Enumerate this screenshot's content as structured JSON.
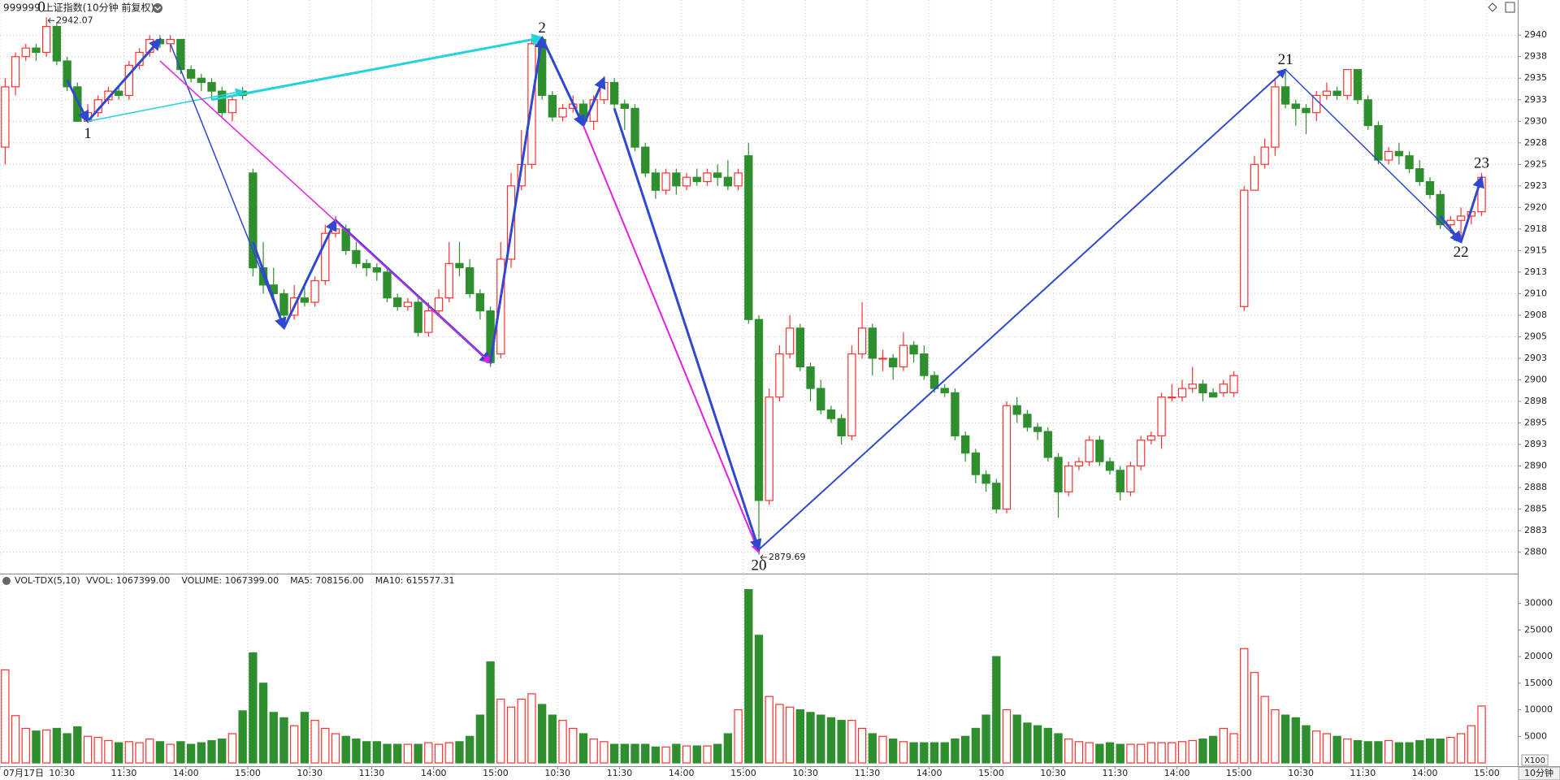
{
  "chart_data": [
    {
      "type": "candlestick",
      "title": "999999 上证指数(10分钟 前复权)",
      "up_color": "#ff3030",
      "down_color": "#2f8f2f",
      "xlim": [
        0,
        147
      ],
      "ylim": [
        2877.7,
        2942
      ],
      "grid": true,
      "yticks": [
        2880,
        {
          "value": 2882.5,
          "label": "2883"
        },
        2885,
        {
          "value": 2887.5,
          "label": "2888"
        },
        2890,
        {
          "value": 2892.5,
          "label": "2893"
        },
        2895,
        {
          "value": 2897.5,
          "label": "2898"
        },
        2900,
        {
          "value": 2902.5,
          "label": "2903"
        },
        2905,
        {
          "value": 2907.5,
          "label": "2908"
        },
        2910,
        {
          "value": 2912.5,
          "label": "2913"
        },
        2915,
        {
          "value": 2917.5,
          "label": "2918"
        },
        2920,
        {
          "value": 2922.5,
          "label": "2923"
        },
        2925,
        {
          "value": 2927.5,
          "label": "2928"
        },
        2930,
        {
          "value": 2932.5,
          "label": "2933"
        },
        2935,
        {
          "value": 2937.5,
          "label": "2938"
        },
        2940
      ],
      "open": [
        2927,
        2934,
        2937.5,
        2938.5,
        2938,
        2941,
        2937,
        2934,
        2930,
        2931,
        2932.5,
        2933.5,
        2933,
        2936.5,
        2938,
        2939.5,
        2939,
        2939.5,
        2936,
        2935,
        2934.5,
        2933.5,
        2931,
        2933.5,
        2924,
        2913,
        2911,
        2910,
        2907.5,
        2909.5,
        2909,
        2911.5,
        2917,
        2917.5,
        2915,
        2913.5,
        2913,
        2912.5,
        2909.5,
        2908.5,
        2909,
        2905.5,
        2908,
        2909.5,
        2913.5,
        2913,
        2910,
        2908,
        2903,
        2914,
        2922.5,
        2925,
        2939.5,
        2933,
        2930.5,
        2931.5,
        2932,
        2930,
        2932.5,
        2934.5,
        2932,
        2931.5,
        2927,
        2924,
        2922,
        2924,
        2922.5,
        2923.5,
        2923,
        2924,
        2923.5,
        2922.5,
        2926,
        2907,
        2886,
        2898,
        2903,
        2906,
        2901.5,
        2899,
        2896.5,
        2895.5,
        2893.5,
        2903,
        2906,
        2902.5,
        2902.5,
        2901.5,
        2904,
        2903,
        2900.5,
        2899,
        2898.5,
        2893.5,
        2891.5,
        2889,
        2888,
        2885,
        2897,
        2896,
        2894.5,
        2894,
        2891,
        2887,
        2890,
        2890.5,
        2893,
        2890.5,
        2889.5,
        2887,
        2890,
        2893,
        2893.5,
        2898,
        2898,
        2899,
        2899.5,
        2898.5,
        2898.5,
        2898.5,
        2908.5,
        2922,
        2925,
        2927,
        2934,
        2932,
        2931.5,
        2931,
        2933,
        2933.5,
        2933,
        2936,
        2932.5,
        2929.5,
        2925.5,
        2926.5,
        2926,
        2924.5,
        2923,
        2921.5,
        2918,
        2918.5,
        2919,
        2919.5
      ],
      "high": [
        2935,
        2938,
        2939,
        2939,
        2942.07,
        2941.5,
        2937.5,
        2934.5,
        2932,
        2933,
        2934,
        2934,
        2937,
        2938.5,
        2940,
        2940,
        2940,
        2939.5,
        2936.5,
        2935.5,
        2935,
        2934,
        2933,
        2934,
        2924.5,
        2916,
        2913,
        2910.5,
        2911,
        2911,
        2912,
        2918,
        2919,
        2918,
        2916,
        2914,
        2913.5,
        2913,
        2910,
        2909.5,
        2909.5,
        2909,
        2910.5,
        2916,
        2916,
        2914,
        2910.5,
        2908.5,
        2916,
        2924,
        2929,
        2939.5,
        2939.7,
        2933.5,
        2932,
        2933,
        2932.5,
        2933,
        2935.2,
        2935,
        2932.5,
        2932,
        2927.5,
        2924.5,
        2924.5,
        2924.5,
        2924,
        2924.5,
        2924.5,
        2925,
        2925.5,
        2924.5,
        2927.5,
        2907.5,
        2899,
        2904,
        2907.5,
        2906.5,
        2902,
        2900,
        2897,
        2896,
        2904,
        2909,
        2906.5,
        2903.5,
        2903,
        2905.5,
        2904.5,
        2904,
        2901,
        2899.5,
        2899,
        2894,
        2892,
        2889.5,
        2888.5,
        2897.5,
        2898,
        2896.5,
        2895,
        2894.5,
        2891.5,
        2890.5,
        2891,
        2893.5,
        2893.5,
        2891,
        2890,
        2890.5,
        2893.5,
        2894,
        2898.5,
        2899.5,
        2900,
        2901.5,
        2900,
        2899,
        2900,
        2901,
        2922.5,
        2926,
        2928,
        2935,
        2936,
        2932.5,
        2932,
        2933.5,
        2934.5,
        2934,
        2936,
        2936,
        2933,
        2930,
        2927,
        2927.5,
        2926.5,
        2925.5,
        2923.5,
        2922,
        2919,
        2920,
        2920,
        2924
      ],
      "low": [
        2925,
        2933,
        2937,
        2937,
        2937.5,
        2936.5,
        2933.5,
        2930,
        2929.8,
        2930.5,
        2932,
        2932.5,
        2932.5,
        2936,
        2937.5,
        2938.5,
        2938,
        2935.5,
        2934.5,
        2933.5,
        2932.5,
        2930.5,
        2930,
        2932.5,
        2912,
        2910,
        2909.5,
        2906,
        2907,
        2908.5,
        2908.5,
        2911,
        2916.5,
        2914.5,
        2913,
        2912,
        2911.5,
        2909,
        2908,
        2908,
        2905,
        2905,
        2907.5,
        2909,
        2912,
        2909.5,
        2907,
        2901.5,
        2902.5,
        2913,
        2922,
        2924.5,
        2932.5,
        2930,
        2930,
        2931,
        2929.5,
        2929,
        2932,
        2931.5,
        2929,
        2926.5,
        2923.5,
        2921,
        2921.5,
        2921.5,
        2922,
        2922.5,
        2922.5,
        2922.5,
        2922,
        2922,
        2906.5,
        2879.69,
        2885.5,
        2897.5,
        2902.5,
        2901,
        2897.5,
        2896,
        2895,
        2892.5,
        2893,
        2902.5,
        2900.5,
        2901,
        2900,
        2901,
        2902,
        2900,
        2898.5,
        2898,
        2893,
        2890.5,
        2888,
        2887,
        2884.5,
        2884.5,
        2895,
        2894,
        2893,
        2890.5,
        2884,
        2886.5,
        2889.5,
        2890,
        2890,
        2889,
        2886,
        2886.5,
        2889.5,
        2892.5,
        2892,
        2897.5,
        2897.5,
        2898.5,
        2897.5,
        2898,
        2898,
        2898,
        2908,
        2922,
        2924.5,
        2926,
        2931.5,
        2929.5,
        2928.5,
        2930,
        2932.5,
        2932.5,
        2932.5,
        2932,
        2929,
        2925,
        2925,
        2925,
        2924,
        2922.5,
        2921,
        2917.5,
        2917,
        2916,
        2918,
        2919
      ],
      "close": [
        2934,
        2937.5,
        2938.5,
        2938,
        2941,
        2937,
        2934,
        2930,
        2931,
        2932.5,
        2933.5,
        2933,
        2936.5,
        2938,
        2939.5,
        2939,
        2939.5,
        2936,
        2935,
        2934.5,
        2933.5,
        2931,
        2932.5,
        2933,
        2913,
        2911,
        2910,
        2907.5,
        2909.5,
        2909,
        2911.5,
        2917,
        2917.5,
        2915,
        2913.5,
        2913,
        2912.5,
        2909.5,
        2908.5,
        2909,
        2905.5,
        2908,
        2909.5,
        2913.5,
        2913,
        2910,
        2908,
        2902,
        2914,
        2922.5,
        2925,
        2939,
        2933,
        2930.5,
        2931.5,
        2932,
        2930,
        2932.5,
        2934.5,
        2932,
        2931.5,
        2927,
        2924,
        2922,
        2924,
        2922.5,
        2923.5,
        2923,
        2924,
        2923.5,
        2922.5,
        2924,
        2907,
        2886,
        2898,
        2903,
        2906,
        2901.5,
        2899,
        2896.5,
        2895.5,
        2893.5,
        2903,
        2906,
        2902.5,
        2902.5,
        2901.5,
        2904,
        2903,
        2900.5,
        2899,
        2898.5,
        2893.5,
        2891.5,
        2889,
        2888,
        2885,
        2897,
        2896,
        2894.5,
        2894,
        2891,
        2887,
        2890,
        2890.5,
        2893,
        2890.5,
        2889.5,
        2887,
        2890,
        2893,
        2893.5,
        2898,
        2898,
        2899,
        2899.5,
        2898.5,
        2898,
        2899.5,
        2900.5,
        2922,
        2925,
        2927,
        2934,
        2932,
        2931.5,
        2931,
        2933,
        2933.5,
        2933,
        2936,
        2932.5,
        2929.5,
        2925.5,
        2926.5,
        2926,
        2924.5,
        2923,
        2921.5,
        2918,
        2918.5,
        2919,
        2919.5,
        2923.5
      ],
      "pivots": [
        {
          "label": "0",
          "index": 4,
          "side": "high",
          "show_price": true
        },
        {
          "label": "1",
          "index": 8,
          "side": "low"
        },
        {
          "label": "2",
          "index": 52,
          "side": "high"
        },
        {
          "label": "20",
          "index": 73,
          "side": "low",
          "show_price": true
        },
        {
          "label": "21",
          "index": 124,
          "side": "high"
        },
        {
          "label": "22",
          "index": 141,
          "side": "low"
        },
        {
          "label": "23",
          "index": 143,
          "side": "high"
        }
      ],
      "lines": [
        {
          "color": "#3048d0",
          "width": 3,
          "from": [
            6,
            2934.8
          ],
          "to": [
            8,
            2930
          ]
        },
        {
          "color": "#3048d0",
          "width": 3,
          "from": [
            8,
            2930
          ],
          "to": [
            15,
            2939.5
          ]
        },
        {
          "color": "#22d3da",
          "width": 1.5,
          "from": [
            8,
            2930
          ],
          "to": [
            23,
            2933.5
          ]
        },
        {
          "color": "#3048d0",
          "width": 1.5,
          "from": [
            16,
            2939
          ],
          "to": [
            27,
            2906
          ]
        },
        {
          "color": "#3048d0",
          "width": 3,
          "from": [
            24,
            2916
          ],
          "to": [
            27,
            2906
          ]
        },
        {
          "color": "#3048d0",
          "width": 3,
          "from": [
            27,
            2906
          ],
          "to": [
            32,
            2918.5
          ]
        },
        {
          "color": "#3048d0",
          "width": 3,
          "from": [
            32,
            2918.5
          ],
          "to": [
            47,
            2902
          ]
        },
        {
          "color": "#e020e0",
          "width": 1.5,
          "from": [
            15,
            2937
          ],
          "to": [
            47,
            2902
          ]
        },
        {
          "color": "#22d3da",
          "width": 3,
          "from": [
            20,
            2932.5
          ],
          "to": [
            52,
            2939.7
          ]
        },
        {
          "color": "#3048d0",
          "width": 3,
          "from": [
            47,
            2902
          ],
          "to": [
            52,
            2939.7
          ]
        },
        {
          "color": "#3048d0",
          "width": 3,
          "from": [
            52,
            2939.7
          ],
          "to": [
            56,
            2929.5
          ]
        },
        {
          "color": "#3048d0",
          "width": 3,
          "from": [
            56,
            2929.5
          ],
          "to": [
            58,
            2935
          ]
        },
        {
          "color": "#e020e0",
          "width": 2,
          "from": [
            56,
            2929.5
          ],
          "to": [
            73,
            2880
          ]
        },
        {
          "color": "#3048d0",
          "width": 3,
          "from": [
            59,
            2931.5
          ],
          "to": [
            73,
            2880.3
          ]
        },
        {
          "color": "#3048d0",
          "width": 2,
          "from": [
            73,
            2880.3
          ],
          "to": [
            124,
            2936
          ]
        },
        {
          "color": "#3048d0",
          "width": 1.5,
          "from": [
            124,
            2936
          ],
          "to": [
            141,
            2916
          ]
        },
        {
          "color": "#3048d0",
          "width": 3,
          "from": [
            139,
            2919
          ],
          "to": [
            141,
            2916
          ]
        },
        {
          "color": "#3048d0",
          "width": 3,
          "from": [
            141,
            2916
          ],
          "to": [
            143,
            2923.5
          ]
        }
      ]
    },
    {
      "type": "bar",
      "title": "VOL-TDX(5,10)",
      "legend": [
        "VVOL: 1067399.00",
        "VOLUME: 1067399.00",
        "MA5: 708156.00",
        "MA10: 615577.31"
      ],
      "legend_colors": [
        "#222222",
        "#1a7fc8",
        "#1a7fc8",
        "#a0209a"
      ],
      "unit_label": "X100",
      "period_label": "10分钟",
      "xlim": [
        0,
        147
      ],
      "ylim": [
        0,
        33000
      ],
      "yticks": [
        5000,
        10000,
        15000,
        20000,
        25000,
        30000
      ],
      "xgrid": true,
      "xticks": [
        {
          "value": 0,
          "label": "07月17日"
        },
        {
          "value": 6,
          "label": "10:30"
        },
        {
          "value": 12,
          "label": "11:30"
        },
        {
          "value": 18,
          "label": "14:00"
        },
        {
          "value": 24,
          "label": "15:00"
        },
        {
          "value": 30,
          "label": "10:30"
        },
        {
          "value": 36,
          "label": "11:30"
        },
        {
          "value": 42,
          "label": "14:00"
        },
        {
          "value": 48,
          "label": "15:00"
        },
        {
          "value": 54,
          "label": "10:30"
        },
        {
          "value": 60,
          "label": "11:30"
        },
        {
          "value": 66,
          "label": "14:00"
        },
        {
          "value": 72,
          "label": "15:00"
        },
        {
          "value": 78,
          "label": "10:30"
        },
        {
          "value": 84,
          "label": "11:30"
        },
        {
          "value": 90,
          "label": "14:00"
        },
        {
          "value": 96,
          "label": "15:00"
        },
        {
          "value": 102,
          "label": "10:30"
        },
        {
          "value": 108,
          "label": "11:30"
        },
        {
          "value": 114,
          "label": "14:00"
        },
        {
          "value": 120,
          "label": "15:00"
        },
        {
          "value": 126,
          "label": "10:30"
        },
        {
          "value": 132,
          "label": "11:30"
        },
        {
          "value": 138,
          "label": "14:00"
        },
        {
          "value": 144,
          "label": "15:00"
        }
      ],
      "values": [
        17500,
        8900,
        6500,
        6000,
        6200,
        6500,
        5500,
        6800,
        5000,
        4800,
        4200,
        3800,
        4000,
        3800,
        4500,
        4000,
        3500,
        4000,
        3500,
        3800,
        4200,
        4500,
        5500,
        9800,
        20700,
        15000,
        9500,
        8500,
        7000,
        9500,
        8000,
        6500,
        5500,
        5000,
        4500,
        4000,
        4000,
        3500,
        3500,
        3500,
        3500,
        3800,
        3500,
        3800,
        4000,
        5000,
        9000,
        19000,
        12000,
        10500,
        12000,
        13000,
        11000,
        9000,
        8000,
        6500,
        5500,
        4500,
        4000,
        3500,
        3500,
        3500,
        3500,
        3000,
        3000,
        3500,
        3200,
        3200,
        3200,
        3500,
        5500,
        10000,
        32600,
        24000,
        12500,
        11000,
        10500,
        10000,
        9500,
        9000,
        8500,
        8000,
        8000,
        6500,
        5500,
        5000,
        4500,
        4000,
        3800,
        3800,
        3800,
        3800,
        4500,
        5000,
        6500,
        9000,
        20000,
        10000,
        9000,
        7500,
        7000,
        6500,
        5500,
        4500,
        4000,
        3800,
        3500,
        3800,
        3500,
        3500,
        3500,
        3800,
        3800,
        3800,
        4000,
        4200,
        4500,
        5000,
        6500,
        5500,
        21500,
        17000,
        12500,
        10000,
        9000,
        8500,
        7000,
        6000,
        5500,
        5000,
        4500,
        4200,
        4000,
        4000,
        4200,
        3800,
        3800,
        4200,
        4500,
        4500,
        4800,
        5500,
        7000,
        10700
      ]
    }
  ]
}
